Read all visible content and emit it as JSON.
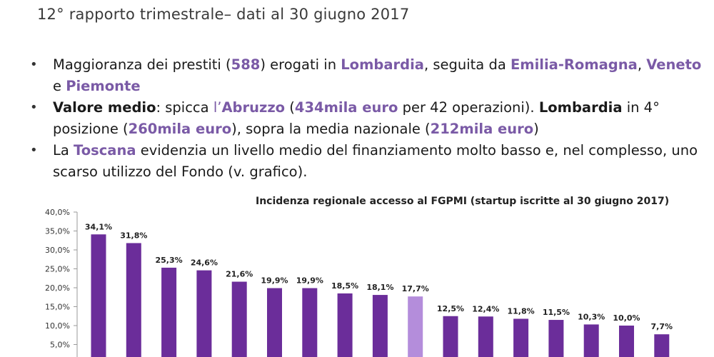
{
  "subtitle": "12° rapporto trimestrale– dati al 30 giugno 2017",
  "bullets": [
    [
      {
        "t": "Maggioranza dei prestiti ("
      },
      {
        "t": "588",
        "s": "hl"
      },
      {
        "t": ") erogati in "
      },
      {
        "t": "Lombardia",
        "s": "hl"
      },
      {
        "t": ", seguita da "
      },
      {
        "t": "Emilia-Romagna",
        "s": "hl"
      },
      {
        "t": ", "
      },
      {
        "t": "Veneto",
        "s": "hl"
      },
      {
        "t": " e "
      },
      {
        "t": "Piemonte",
        "s": "hl"
      }
    ],
    [
      {
        "t": "Valore medio",
        "s": "b"
      },
      {
        "t": ": spicca "
      },
      {
        "t": "l’",
        "s": "hlthin"
      },
      {
        "t": "Abruzzo",
        "s": "hl"
      },
      {
        "t": " ("
      },
      {
        "t": "434mila euro",
        "s": "hl"
      },
      {
        "t": " per 42 operazioni). "
      },
      {
        "t": "Lombardia",
        "s": "b"
      },
      {
        "t": " in 4° posizione ("
      },
      {
        "t": "260mila euro",
        "s": "hl"
      },
      {
        "t": "), sopra la media nazionale ("
      },
      {
        "t": "212mila euro",
        "s": "hl"
      },
      {
        "t": ")"
      }
    ],
    [
      {
        "t": "La "
      },
      {
        "t": "Toscana",
        "s": "hl"
      },
      {
        "t": " evidenzia un livello medio del finanziamento molto basso e, nel complesso, uno scarso utilizzo del Fondo (v. grafico)."
      }
    ]
  ],
  "colors": {
    "accent": "#7a5aa6",
    "bar": "#6b2d9a",
    "bar_highlight": "#b48ddb"
  },
  "chart_data": {
    "type": "bar",
    "title": "Incidenza regionale accesso al FGPMI (startup iscritte al 30 giugno 2017)",
    "ylim": [
      0,
      40
    ],
    "yticks": [
      "40,0%",
      "35,0%",
      "30,0%",
      "25,0%",
      "20,0%",
      "15,0%",
      "10,0%",
      "5,0%"
    ],
    "ytick_values": [
      40,
      35,
      30,
      25,
      20,
      15,
      10,
      5
    ],
    "values": [
      34.1,
      31.8,
      25.3,
      24.6,
      21.6,
      19.9,
      19.9,
      18.5,
      18.1,
      17.7,
      12.5,
      12.4,
      11.8,
      11.5,
      10.3,
      10.0,
      7.7
    ],
    "labels": [
      "34,1%",
      "31,8%",
      "25,3%",
      "24,6%",
      "21,6%",
      "19,9%",
      "19,9%",
      "18,5%",
      "18,1%",
      "17,7%",
      "12,5%",
      "12,4%",
      "11,8%",
      "11,5%",
      "10,3%",
      "10,0%",
      "7,7%"
    ],
    "highlight_index": 9,
    "grid": false
  }
}
